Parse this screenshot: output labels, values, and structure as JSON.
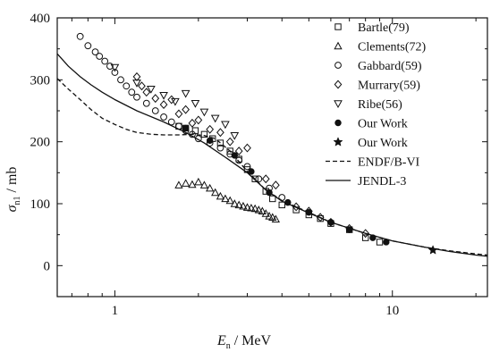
{
  "chart_data": {
    "type": "scatter",
    "x_scale": "log",
    "xlim": [
      0.62,
      22
    ],
    "ylim": [
      -50,
      400
    ],
    "x_ticks": [
      1,
      10
    ],
    "x_tick_labels": [
      "1",
      "10"
    ],
    "y_ticks": [
      0,
      100,
      200,
      300,
      400
    ],
    "y_tick_labels": [
      "0",
      "100",
      "200",
      "300",
      "400"
    ],
    "xlabel": {
      "main": "E",
      "sub": "n",
      "rest": " / MeV"
    },
    "ylabel": {
      "main": "σ",
      "sub": "n1",
      "rest": " / mb"
    },
    "grid": false,
    "legend_position": "top-right",
    "series": [
      {
        "name": "Bartle(79)",
        "marker": "square-open",
        "x": [
          1.7,
          1.8,
          1.95,
          2.1,
          2.25,
          2.4,
          2.6,
          2.8,
          3.0,
          3.2,
          3.5,
          3.7,
          4.0,
          4.5,
          5.0,
          5.5,
          6.0,
          7.0,
          8.0,
          9.0
        ],
        "y": [
          225,
          222,
          218,
          212,
          205,
          198,
          185,
          172,
          155,
          140,
          120,
          108,
          98,
          90,
          82,
          76,
          68,
          58,
          45,
          38
        ]
      },
      {
        "name": "Clements(72)",
        "marker": "triangle-up-open",
        "x": [
          1.7,
          1.8,
          1.9,
          2.0,
          2.1,
          2.2,
          2.3,
          2.4,
          2.5,
          2.6,
          2.7,
          2.8,
          2.9,
          3.0,
          3.1,
          3.2,
          3.3,
          3.4,
          3.5,
          3.6,
          3.7,
          3.8
        ],
        "y": [
          130,
          133,
          131,
          135,
          130,
          125,
          118,
          112,
          108,
          105,
          100,
          98,
          96,
          94,
          93,
          92,
          90,
          88,
          84,
          80,
          78,
          75
        ]
      },
      {
        "name": "Gabbard(59)",
        "marker": "circle-open",
        "x": [
          0.75,
          0.8,
          0.85,
          0.88,
          0.92,
          0.96,
          1.0,
          1.05,
          1.1,
          1.15,
          1.2,
          1.3,
          1.4,
          1.5,
          1.6,
          1.7,
          1.8,
          1.9,
          2.0,
          2.2,
          2.4,
          2.6,
          2.8,
          3.0,
          3.3,
          3.6,
          4.0
        ],
        "y": [
          370,
          355,
          345,
          338,
          330,
          322,
          312,
          300,
          290,
          280,
          272,
          262,
          250,
          240,
          232,
          225,
          218,
          212,
          205,
          198,
          190,
          180,
          170,
          160,
          140,
          125,
          110
        ]
      },
      {
        "name": "Murrary(59)",
        "marker": "diamond-open",
        "x": [
          1.2,
          1.25,
          1.3,
          1.4,
          1.5,
          1.6,
          1.7,
          1.8,
          1.9,
          2.0,
          2.2,
          2.4,
          2.6,
          2.8,
          3.0,
          3.5,
          3.8,
          4.5,
          5.0,
          5.5,
          6.0,
          7.0,
          8.0
        ],
        "y": [
          305,
          290,
          280,
          270,
          260,
          268,
          245,
          252,
          230,
          235,
          220,
          215,
          200,
          185,
          190,
          140,
          130,
          95,
          88,
          78,
          70,
          60,
          52
        ]
      },
      {
        "name": "Ribe(56)",
        "marker": "triangle-down-open",
        "x": [
          1.0,
          1.2,
          1.35,
          1.5,
          1.65,
          1.8,
          1.95,
          2.1,
          2.3,
          2.5,
          2.7
        ],
        "y": [
          320,
          295,
          285,
          275,
          265,
          278,
          262,
          248,
          238,
          228,
          210
        ]
      },
      {
        "name": "Our Work",
        "marker": "circle-filled",
        "x": [
          1.8,
          2.2,
          2.7,
          3.1,
          3.6,
          4.2,
          5.0,
          6.0,
          7.0,
          8.5,
          9.5
        ],
        "y": [
          222,
          202,
          178,
          152,
          118,
          102,
          86,
          70,
          58,
          45,
          38
        ]
      },
      {
        "name": "Our Work",
        "marker": "star-filled",
        "x": [
          14.0
        ],
        "y": [
          25
        ]
      },
      {
        "name": "ENDF/B-VI",
        "line": "dashed",
        "x": [
          0.62,
          0.68,
          0.75,
          0.82,
          0.9,
          1.0,
          1.1,
          1.2,
          1.35,
          1.5,
          1.7,
          1.9,
          2.1,
          2.3,
          2.6,
          3.0,
          3.5,
          4.0,
          5.0,
          6.0,
          8.0,
          10.0,
          13.0,
          16.0,
          20.0,
          22.0
        ],
        "y": [
          302,
          285,
          268,
          252,
          238,
          228,
          220,
          215,
          212,
          211,
          211,
          212,
          210,
          205,
          185,
          152,
          122,
          105,
          86,
          70,
          52,
          40,
          30,
          24,
          19,
          17
        ]
      },
      {
        "name": "JENDL-3",
        "line": "solid",
        "x": [
          0.62,
          0.68,
          0.75,
          0.82,
          0.9,
          1.0,
          1.2,
          1.5,
          1.8,
          2.1,
          2.5,
          3.0,
          3.5,
          4.0,
          5.0,
          6.0,
          8.0,
          10.0,
          13.0,
          16.0,
          20.0,
          22.0
        ],
        "y": [
          342,
          322,
          305,
          292,
          280,
          268,
          250,
          232,
          215,
          198,
          175,
          150,
          122,
          104,
          85,
          70,
          52,
          40,
          30,
          23,
          17,
          15
        ]
      }
    ]
  }
}
